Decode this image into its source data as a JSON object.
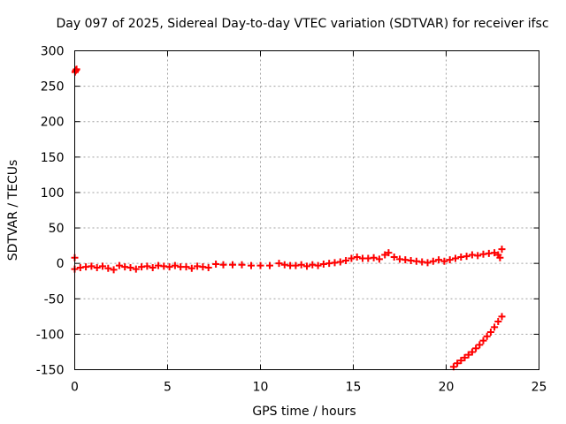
{
  "chart_data": {
    "type": "scatter",
    "title": "Day 097 of 2025, Sidereal Day-to-day VTEC variation (SDTVAR) for receiver ifsc",
    "xlabel": "GPS time / hours",
    "ylabel": "SDTVAR / TECUs",
    "xlim": [
      0,
      25
    ],
    "ylim": [
      -150,
      300
    ],
    "xticks": [
      "0",
      "5",
      "10",
      "15",
      "20",
      "25"
    ],
    "yticks": [
      "-150",
      "-100",
      "-50",
      "0",
      "50",
      "100",
      "150",
      "200",
      "250",
      "300"
    ],
    "grid": true,
    "marker_color": "#ff0000",
    "series": [
      {
        "points": [
          [
            0.02,
            270
          ],
          [
            0.05,
            272
          ],
          [
            0.08,
            273
          ],
          [
            0.1,
            274
          ],
          [
            0.0,
            8
          ],
          [
            0.0,
            -8
          ],
          [
            0.3,
            -6
          ],
          [
            0.6,
            -5
          ],
          [
            0.9,
            -4
          ],
          [
            1.2,
            -6
          ],
          [
            1.5,
            -4
          ],
          [
            1.8,
            -7
          ],
          [
            2.1,
            -9
          ],
          [
            2.4,
            -3
          ],
          [
            2.7,
            -5
          ],
          [
            3.0,
            -6
          ],
          [
            3.3,
            -8
          ],
          [
            3.6,
            -5
          ],
          [
            3.9,
            -4
          ],
          [
            4.2,
            -6
          ],
          [
            4.5,
            -3
          ],
          [
            4.8,
            -4
          ],
          [
            5.1,
            -5
          ],
          [
            5.4,
            -3
          ],
          [
            5.7,
            -5
          ],
          [
            6.0,
            -5
          ],
          [
            6.3,
            -7
          ],
          [
            6.6,
            -4
          ],
          [
            6.9,
            -5
          ],
          [
            7.2,
            -6
          ],
          [
            7.6,
            -1
          ],
          [
            8.0,
            -2
          ],
          [
            8.5,
            -2
          ],
          [
            9.0,
            -2
          ],
          [
            9.5,
            -3
          ],
          [
            10.0,
            -3
          ],
          [
            10.5,
            -3
          ],
          [
            11.0,
            0
          ],
          [
            11.3,
            -2
          ],
          [
            11.6,
            -3
          ],
          [
            11.9,
            -3
          ],
          [
            12.2,
            -2
          ],
          [
            12.5,
            -4
          ],
          [
            12.8,
            -2
          ],
          [
            13.1,
            -3
          ],
          [
            13.4,
            -1
          ],
          [
            13.7,
            0
          ],
          [
            14.0,
            1
          ],
          [
            14.3,
            2
          ],
          [
            14.6,
            4
          ],
          [
            14.9,
            7
          ],
          [
            15.2,
            9
          ],
          [
            15.5,
            7
          ],
          [
            15.8,
            7
          ],
          [
            16.1,
            8
          ],
          [
            16.4,
            6
          ],
          [
            16.7,
            12
          ],
          [
            16.9,
            15
          ],
          [
            17.2,
            9
          ],
          [
            17.5,
            6
          ],
          [
            17.8,
            5
          ],
          [
            18.1,
            4
          ],
          [
            18.4,
            3
          ],
          [
            18.7,
            2
          ],
          [
            19.0,
            1
          ],
          [
            19.3,
            3
          ],
          [
            19.6,
            5
          ],
          [
            19.9,
            3
          ],
          [
            20.2,
            5
          ],
          [
            20.5,
            7
          ],
          [
            20.8,
            9
          ],
          [
            21.1,
            10
          ],
          [
            21.4,
            12
          ],
          [
            21.7,
            11
          ],
          [
            22.0,
            13
          ],
          [
            22.3,
            14
          ],
          [
            22.6,
            15
          ],
          [
            22.8,
            12
          ],
          [
            23.0,
            20
          ],
          [
            22.9,
            8
          ],
          [
            20.4,
            -146
          ],
          [
            20.6,
            -141
          ],
          [
            20.8,
            -137
          ],
          [
            21.0,
            -133
          ],
          [
            21.2,
            -129
          ],
          [
            21.4,
            -125
          ],
          [
            21.6,
            -120
          ],
          [
            21.8,
            -115
          ],
          [
            22.0,
            -109
          ],
          [
            22.2,
            -103
          ],
          [
            22.4,
            -97
          ],
          [
            22.6,
            -90
          ],
          [
            22.8,
            -82
          ],
          [
            23.0,
            -75
          ]
        ]
      }
    ]
  }
}
